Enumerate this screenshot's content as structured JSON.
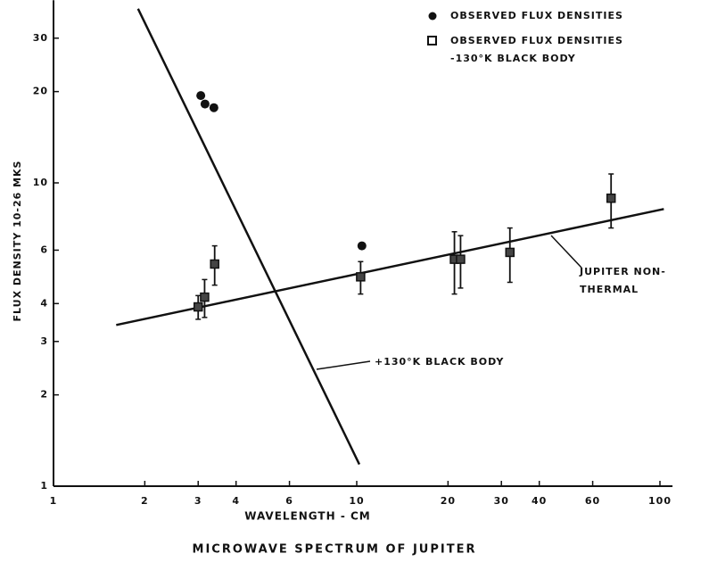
{
  "chart_data": {
    "type": "scatter",
    "caption": "MICROWAVE SPECTRUM OF JUPITER",
    "x_label": "WAVELENGTH - CM",
    "y_label": "FLUX DENSITY 10-26 MKS",
    "log_x": true,
    "log_y": true,
    "xlim": [
      1,
      110
    ],
    "ylim": [
      1,
      40
    ],
    "xticks": [
      1,
      2,
      3,
      4,
      6,
      10,
      20,
      30,
      40,
      60,
      100
    ],
    "yticks": [
      1,
      2,
      3,
      4,
      6,
      10,
      20,
      30
    ],
    "color": "#111111",
    "series": [
      {
        "name": "OBSERVED FLUX DENSITIES",
        "marker": "circle",
        "x": [
          3.06,
          3.16,
          3.38,
          10.4
        ],
        "values": [
          19.4,
          18.2,
          17.7,
          6.2
        ]
      },
      {
        "name": "OBSERVED FLUX DENSITIES -130°K BLACK BODY",
        "marker": "square",
        "x": [
          3.0,
          3.15,
          3.4,
          10.3,
          21,
          22,
          32,
          69
        ],
        "values": [
          3.9,
          4.2,
          5.4,
          4.9,
          5.6,
          5.6,
          5.9,
          8.9
        ],
        "errors": [
          0.35,
          0.6,
          0.8,
          0.6,
          1.3,
          1.1,
          1.2,
          1.8
        ]
      }
    ],
    "lines": [
      {
        "label": "JUPITER NON-THERMAL",
        "x": [
          1.61,
          103
        ],
        "values": [
          3.4,
          8.2
        ]
      },
      {
        "label": "+130°K BLACK BODY",
        "x": [
          1.9,
          10.2
        ],
        "values": [
          37.5,
          1.18
        ]
      }
    ]
  }
}
